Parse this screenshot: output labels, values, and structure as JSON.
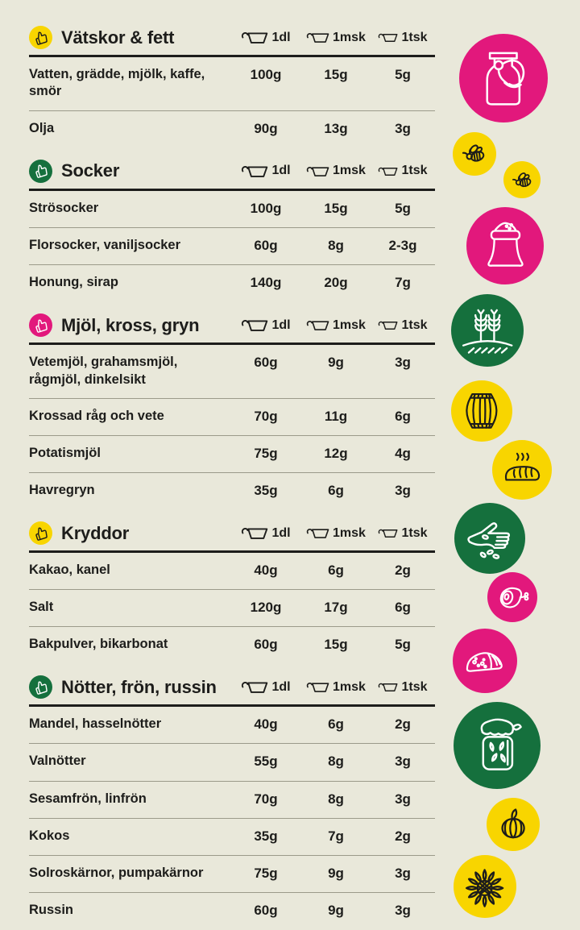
{
  "palette": {
    "background": "#e9e8da",
    "ink": "#1d1d1b",
    "pink": "#e2187c",
    "yellow": "#f8d500",
    "green": "#15703d",
    "divider": "#9b9a8a"
  },
  "table": {
    "columns": [
      {
        "label": "1dl",
        "icon": "measuring-cup-icon"
      },
      {
        "label": "1msk",
        "icon": "measuring-cup-icon"
      },
      {
        "label": "1tsk",
        "icon": "measuring-cup-icon"
      }
    ],
    "sections": [
      {
        "title": "Vätskor & fett",
        "badge_color": "yellow",
        "rows": [
          {
            "label": "Vatten, grädde, mjölk, kaffe, smör",
            "values": [
              "100g",
              "15g",
              "5g"
            ]
          },
          {
            "label": "Olja",
            "values": [
              "90g",
              "13g",
              "3g"
            ]
          }
        ]
      },
      {
        "title": "Socker",
        "badge_color": "green",
        "rows": [
          {
            "label": "Strösocker",
            "values": [
              "100g",
              "15g",
              "5g"
            ]
          },
          {
            "label": "Florsocker, vaniljsocker",
            "values": [
              "60g",
              "8g",
              "2-3g"
            ]
          },
          {
            "label": "Honung, sirap",
            "values": [
              "140g",
              "20g",
              "7g"
            ]
          }
        ]
      },
      {
        "title": "Mjöl, kross, gryn",
        "badge_color": "pink",
        "rows": [
          {
            "label": "Vetemjöl, grahamsmjöl, rågmjöl, dinkelsikt",
            "values": [
              "60g",
              "9g",
              "3g"
            ]
          },
          {
            "label": "Krossad råg och vete",
            "values": [
              "70g",
              "11g",
              "6g"
            ]
          },
          {
            "label": "Potatismjöl",
            "values": [
              "75g",
              "12g",
              "4g"
            ]
          },
          {
            "label": "Havregryn",
            "values": [
              "35g",
              "6g",
              "3g"
            ]
          }
        ]
      },
      {
        "title": "Kryddor",
        "badge_color": "yellow",
        "rows": [
          {
            "label": "Kakao, kanel",
            "values": [
              "40g",
              "6g",
              "2g"
            ]
          },
          {
            "label": "Salt",
            "values": [
              "120g",
              "17g",
              "6g"
            ]
          },
          {
            "label": "Bakpulver, bikarbonat",
            "values": [
              "60g",
              "15g",
              "5g"
            ]
          }
        ]
      },
      {
        "title": "Nötter, frön, russin",
        "badge_color": "green",
        "rows": [
          {
            "label": "Mandel, hasselnötter",
            "values": [
              "40g",
              "6g",
              "2g"
            ]
          },
          {
            "label": "Valnötter",
            "values": [
              "55g",
              "8g",
              "3g"
            ]
          },
          {
            "label": "Sesamfrön, linfrön",
            "values": [
              "70g",
              "8g",
              "3g"
            ]
          },
          {
            "label": "Kokos",
            "values": [
              "35g",
              "7g",
              "2g"
            ]
          },
          {
            "label": "Solroskärnor, pumpakärnor",
            "values": [
              "75g",
              "9g",
              "3g"
            ]
          },
          {
            "label": "Russin",
            "values": [
              "60g",
              "9g",
              "3g"
            ]
          }
        ]
      }
    ]
  },
  "icon_rail": [
    {
      "name": "milk-can",
      "color": "pink"
    },
    {
      "name": "bee",
      "color": "yellow"
    },
    {
      "name": "bee",
      "color": "yellow"
    },
    {
      "name": "flour-sack",
      "color": "pink"
    },
    {
      "name": "wheat",
      "color": "green"
    },
    {
      "name": "barrel",
      "color": "yellow"
    },
    {
      "name": "bread",
      "color": "yellow"
    },
    {
      "name": "hand-sowing-seeds",
      "color": "green"
    },
    {
      "name": "ham",
      "color": "pink"
    },
    {
      "name": "cheese-loaf",
      "color": "pink"
    },
    {
      "name": "seed-jar",
      "color": "green"
    },
    {
      "name": "pumpkin",
      "color": "yellow"
    },
    {
      "name": "sunflower",
      "color": "yellow"
    }
  ]
}
